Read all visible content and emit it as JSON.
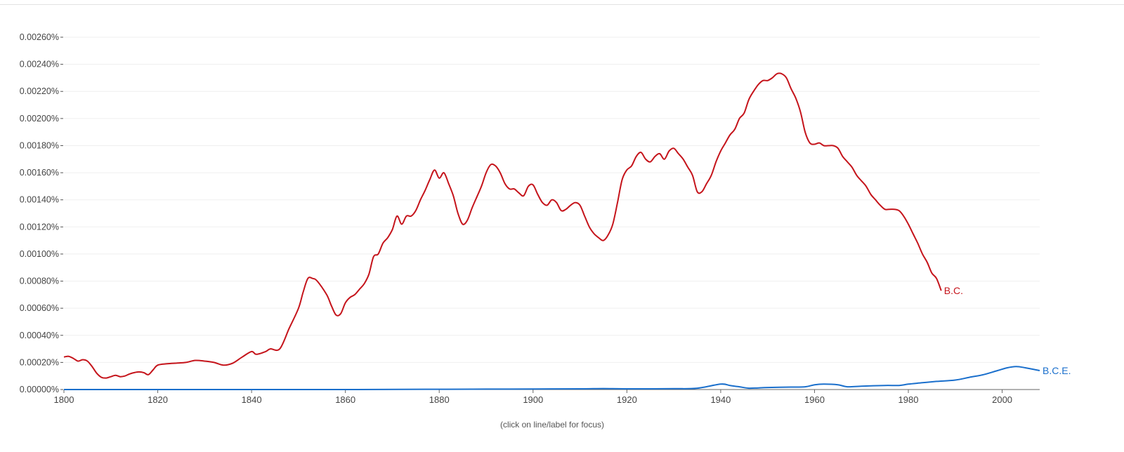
{
  "chart_data": {
    "type": "line",
    "xlim": [
      1800,
      2008
    ],
    "ylim": [
      0,
      0.0026
    ],
    "y_ticks": [
      {
        "value": 0.0026,
        "label": "0.00260%"
      },
      {
        "value": 0.0024,
        "label": "0.00240%"
      },
      {
        "value": 0.0022,
        "label": "0.00220%"
      },
      {
        "value": 0.002,
        "label": "0.00200%"
      },
      {
        "value": 0.0018,
        "label": "0.00180%"
      },
      {
        "value": 0.0016,
        "label": "0.00160%"
      },
      {
        "value": 0.0014,
        "label": "0.00140%"
      },
      {
        "value": 0.0012,
        "label": "0.00120%"
      },
      {
        "value": 0.001,
        "label": "0.00100%"
      },
      {
        "value": 0.0008,
        "label": "0.00080%"
      },
      {
        "value": 0.0006,
        "label": "0.00060%"
      },
      {
        "value": 0.0004,
        "label": "0.00040%"
      },
      {
        "value": 0.0002,
        "label": "0.00020%"
      },
      {
        "value": 0.0,
        "label": "0.00000%"
      }
    ],
    "x_ticks": [
      {
        "value": 1800,
        "label": "1800"
      },
      {
        "value": 1820,
        "label": "1820"
      },
      {
        "value": 1840,
        "label": "1840"
      },
      {
        "value": 1860,
        "label": "1860"
      },
      {
        "value": 1880,
        "label": "1880"
      },
      {
        "value": 1900,
        "label": "1900"
      },
      {
        "value": 1920,
        "label": "1920"
      },
      {
        "value": 1940,
        "label": "1940"
      },
      {
        "value": 1960,
        "label": "1960"
      },
      {
        "value": 1980,
        "label": "1980"
      },
      {
        "value": 2000,
        "label": "2000"
      }
    ],
    "grid": true,
    "legend": "end-of-line labels",
    "series": [
      {
        "name": "B.C.",
        "color": "#c5141b",
        "points": [
          [
            1800,
            0.00024
          ],
          [
            1801,
            0.000245
          ],
          [
            1802,
            0.00023
          ],
          [
            1803,
            0.00021
          ],
          [
            1804,
            0.00022
          ],
          [
            1805,
            0.00021
          ],
          [
            1806,
            0.00017
          ],
          [
            1807,
            0.00012
          ],
          [
            1808,
            9e-05
          ],
          [
            1809,
            8.5e-05
          ],
          [
            1810,
            9.5e-05
          ],
          [
            1811,
            0.000105
          ],
          [
            1812,
            9.5e-05
          ],
          [
            1813,
            0.0001
          ],
          [
            1814,
            0.000115
          ],
          [
            1815,
            0.000125
          ],
          [
            1816,
            0.00013
          ],
          [
            1817,
            0.000125
          ],
          [
            1818,
            0.00011
          ],
          [
            1819,
            0.000145
          ],
          [
            1820,
            0.00018
          ],
          [
            1822,
            0.00019
          ],
          [
            1824,
            0.000195
          ],
          [
            1826,
            0.0002
          ],
          [
            1828,
            0.000215
          ],
          [
            1830,
            0.00021
          ],
          [
            1832,
            0.0002
          ],
          [
            1834,
            0.00018
          ],
          [
            1836,
            0.000195
          ],
          [
            1838,
            0.00024
          ],
          [
            1840,
            0.00028
          ],
          [
            1841,
            0.00026
          ],
          [
            1843,
            0.00028
          ],
          [
            1844,
            0.0003
          ],
          [
            1846,
            0.0003
          ],
          [
            1848,
            0.00045
          ],
          [
            1850,
            0.0006
          ],
          [
            1851,
            0.00072
          ],
          [
            1852,
            0.00082
          ],
          [
            1853,
            0.00082
          ],
          [
            1854,
            0.0008
          ],
          [
            1856,
            0.0007
          ],
          [
            1857,
            0.00062
          ],
          [
            1858,
            0.00055
          ],
          [
            1859,
            0.00056
          ],
          [
            1860,
            0.00064
          ],
          [
            1861,
            0.00068
          ],
          [
            1862,
            0.0007
          ],
          [
            1863,
            0.00074
          ],
          [
            1864,
            0.00078
          ],
          [
            1865,
            0.00085
          ],
          [
            1866,
            0.00098
          ],
          [
            1867,
            0.001
          ],
          [
            1868,
            0.00108
          ],
          [
            1869,
            0.00112
          ],
          [
            1870,
            0.00118
          ],
          [
            1871,
            0.00128
          ],
          [
            1872,
            0.00122
          ],
          [
            1873,
            0.00128
          ],
          [
            1874,
            0.00128
          ],
          [
            1875,
            0.00132
          ],
          [
            1876,
            0.0014
          ],
          [
            1877,
            0.00147
          ],
          [
            1878,
            0.00155
          ],
          [
            1879,
            0.00162
          ],
          [
            1880,
            0.00156
          ],
          [
            1881,
            0.0016
          ],
          [
            1882,
            0.00152
          ],
          [
            1883,
            0.00143
          ],
          [
            1884,
            0.0013
          ],
          [
            1885,
            0.00122
          ],
          [
            1886,
            0.00125
          ],
          [
            1887,
            0.00134
          ],
          [
            1888,
            0.00142
          ],
          [
            1889,
            0.0015
          ],
          [
            1890,
            0.0016
          ],
          [
            1891,
            0.00166
          ],
          [
            1892,
            0.00165
          ],
          [
            1893,
            0.0016
          ],
          [
            1894,
            0.00152
          ],
          [
            1895,
            0.00148
          ],
          [
            1896,
            0.00148
          ],
          [
            1897,
            0.00145
          ],
          [
            1898,
            0.00143
          ],
          [
            1899,
            0.0015
          ],
          [
            1900,
            0.00151
          ],
          [
            1901,
            0.00144
          ],
          [
            1902,
            0.00138
          ],
          [
            1903,
            0.00136
          ],
          [
            1904,
            0.0014
          ],
          [
            1905,
            0.00138
          ],
          [
            1906,
            0.00132
          ],
          [
            1907,
            0.00133
          ],
          [
            1908,
            0.00136
          ],
          [
            1909,
            0.00138
          ],
          [
            1910,
            0.00136
          ],
          [
            1911,
            0.00128
          ],
          [
            1912,
            0.0012
          ],
          [
            1913,
            0.00115
          ],
          [
            1914,
            0.00112
          ],
          [
            1915,
            0.0011
          ],
          [
            1916,
            0.00114
          ],
          [
            1917,
            0.00122
          ],
          [
            1918,
            0.00138
          ],
          [
            1919,
            0.00155
          ],
          [
            1920,
            0.00162
          ],
          [
            1921,
            0.00165
          ],
          [
            1922,
            0.00172
          ],
          [
            1923,
            0.00175
          ],
          [
            1924,
            0.0017
          ],
          [
            1925,
            0.00168
          ],
          [
            1926,
            0.00172
          ],
          [
            1927,
            0.00174
          ],
          [
            1928,
            0.0017
          ],
          [
            1929,
            0.00176
          ],
          [
            1930,
            0.00178
          ],
          [
            1931,
            0.00174
          ],
          [
            1932,
            0.0017
          ],
          [
            1933,
            0.00164
          ],
          [
            1934,
            0.00158
          ],
          [
            1935,
            0.00146
          ],
          [
            1936,
            0.00146
          ],
          [
            1937,
            0.00152
          ],
          [
            1938,
            0.00158
          ],
          [
            1939,
            0.00168
          ],
          [
            1940,
            0.00176
          ],
          [
            1941,
            0.00182
          ],
          [
            1942,
            0.00188
          ],
          [
            1943,
            0.00192
          ],
          [
            1944,
            0.002
          ],
          [
            1945,
            0.00204
          ],
          [
            1946,
            0.00214
          ],
          [
            1947,
            0.0022
          ],
          [
            1948,
            0.00225
          ],
          [
            1949,
            0.00228
          ],
          [
            1950,
            0.00228
          ],
          [
            1951,
            0.0023
          ],
          [
            1952,
            0.00233
          ],
          [
            1953,
            0.00233
          ],
          [
            1954,
            0.0023
          ],
          [
            1955,
            0.00222
          ],
          [
            1956,
            0.00215
          ],
          [
            1957,
            0.00205
          ],
          [
            1958,
            0.0019
          ],
          [
            1959,
            0.00182
          ],
          [
            1960,
            0.00181
          ],
          [
            1961,
            0.00182
          ],
          [
            1962,
            0.0018
          ],
          [
            1963,
            0.0018
          ],
          [
            1964,
            0.0018
          ],
          [
            1965,
            0.00178
          ],
          [
            1966,
            0.00172
          ],
          [
            1967,
            0.00168
          ],
          [
            1968,
            0.00164
          ],
          [
            1969,
            0.00158
          ],
          [
            1970,
            0.00154
          ],
          [
            1971,
            0.0015
          ],
          [
            1972,
            0.00144
          ],
          [
            1973,
            0.0014
          ],
          [
            1974,
            0.00136
          ],
          [
            1975,
            0.00133
          ],
          [
            1976,
            0.00133
          ],
          [
            1977,
            0.00133
          ],
          [
            1978,
            0.00132
          ],
          [
            1979,
            0.00128
          ],
          [
            1980,
            0.00122
          ],
          [
            1981,
            0.00115
          ],
          [
            1982,
            0.00108
          ],
          [
            1983,
            0.001
          ],
          [
            1984,
            0.00094
          ],
          [
            1985,
            0.00086
          ],
          [
            1986,
            0.00082
          ],
          [
            1987,
            0.00073
          ]
        ]
      },
      {
        "name": "B.C.E.",
        "color": "#1a6fcc",
        "points": [
          [
            1800,
            0.0
          ],
          [
            1860,
            0.0
          ],
          [
            1880,
            2e-06
          ],
          [
            1890,
            3e-06
          ],
          [
            1900,
            4e-06
          ],
          [
            1910,
            5e-06
          ],
          [
            1915,
            7e-06
          ],
          [
            1920,
            5e-06
          ],
          [
            1930,
            6e-06
          ],
          [
            1935,
            1e-05
          ],
          [
            1940,
            4e-05
          ],
          [
            1942,
            3e-05
          ],
          [
            1944,
            2e-05
          ],
          [
            1946,
            1e-05
          ],
          [
            1948,
            1.2e-05
          ],
          [
            1950,
            1.5e-05
          ],
          [
            1955,
            1.8e-05
          ],
          [
            1958,
            2e-05
          ],
          [
            1960,
            3.5e-05
          ],
          [
            1962,
            4e-05
          ],
          [
            1965,
            3.5e-05
          ],
          [
            1967,
            2e-05
          ],
          [
            1970,
            2.5e-05
          ],
          [
            1975,
            3e-05
          ],
          [
            1978,
            3e-05
          ],
          [
            1980,
            4e-05
          ],
          [
            1983,
            5e-05
          ],
          [
            1986,
            6e-05
          ],
          [
            1990,
            7e-05
          ],
          [
            1993,
            9e-05
          ],
          [
            1996,
            0.00011
          ],
          [
            1999,
            0.00014
          ],
          [
            2001,
            0.00016
          ],
          [
            2003,
            0.00017
          ],
          [
            2005,
            0.00016
          ],
          [
            2008,
            0.00014
          ]
        ]
      }
    ]
  },
  "footer": {
    "hint": "(click on line/label for focus)"
  }
}
